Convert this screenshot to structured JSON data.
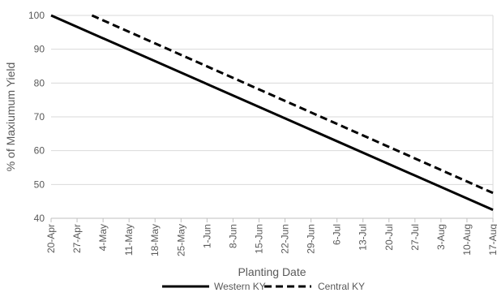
{
  "chart_data": {
    "type": "line",
    "title": "",
    "xlabel": "Planting Date",
    "ylabel": "% of Maxiumum Yield",
    "ylim": [
      40,
      100
    ],
    "yticks": [
      40,
      50,
      60,
      70,
      80,
      90,
      100
    ],
    "xtick_labels": [
      "20-Apr",
      "27-Apr",
      "4-May",
      "11-May",
      "18-May",
      "25-May",
      "1-Jun",
      "8-Jun",
      "15-Jun",
      "22-Jun",
      "29-Jun",
      "6-Jul",
      "13-Jul",
      "20-Jul",
      "27-Jul",
      "3-Aug",
      "10-Aug",
      "17-Aug"
    ],
    "grid": "horizontal",
    "legend_position": "bottom",
    "series": [
      {
        "name": "Western KY",
        "style": "solid",
        "color": "#000000",
        "x": [
          "20-Apr",
          "17-Aug"
        ],
        "values": [
          100,
          42.5
        ]
      },
      {
        "name": "Central KY",
        "style": "dashed",
        "color": "#000000",
        "x": [
          "1-May",
          "17-Aug"
        ],
        "values": [
          100,
          47.5
        ]
      }
    ]
  }
}
